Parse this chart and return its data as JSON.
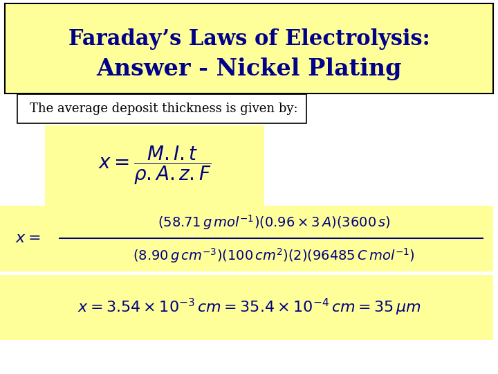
{
  "title_line1": "Faraday’s Laws of Electrolysis:",
  "title_line2": "Answer - Nickel Plating",
  "subtitle": "The average deposit thickness is given by:",
  "bg_color": "#ffffff",
  "title_bg": "#ffff99",
  "formula_bg": "#ffff99",
  "numerics_bg": "#ffff99",
  "result_bg": "#ffff99",
  "title_color": "#00008B",
  "text_color": "#000080",
  "formula_general": "$x = \\dfrac{M.I.t}{\\rho.A.z.F}$",
  "formula_numeric_num": "$(58.71\\,g\\,mol^{-1})(0.96\\times3\\,A)(3600\\,s)$",
  "formula_numeric_den": "$(8.90\\,g\\,cm^{-3})(100\\,cm^{2})(2)(96485\\,C\\,mol^{-1})$",
  "formula_result": "$x = 3.54\\times10^{-3}\\,cm = 35.4\\times10^{-4}\\,cm = 35\\,\\mu m$"
}
